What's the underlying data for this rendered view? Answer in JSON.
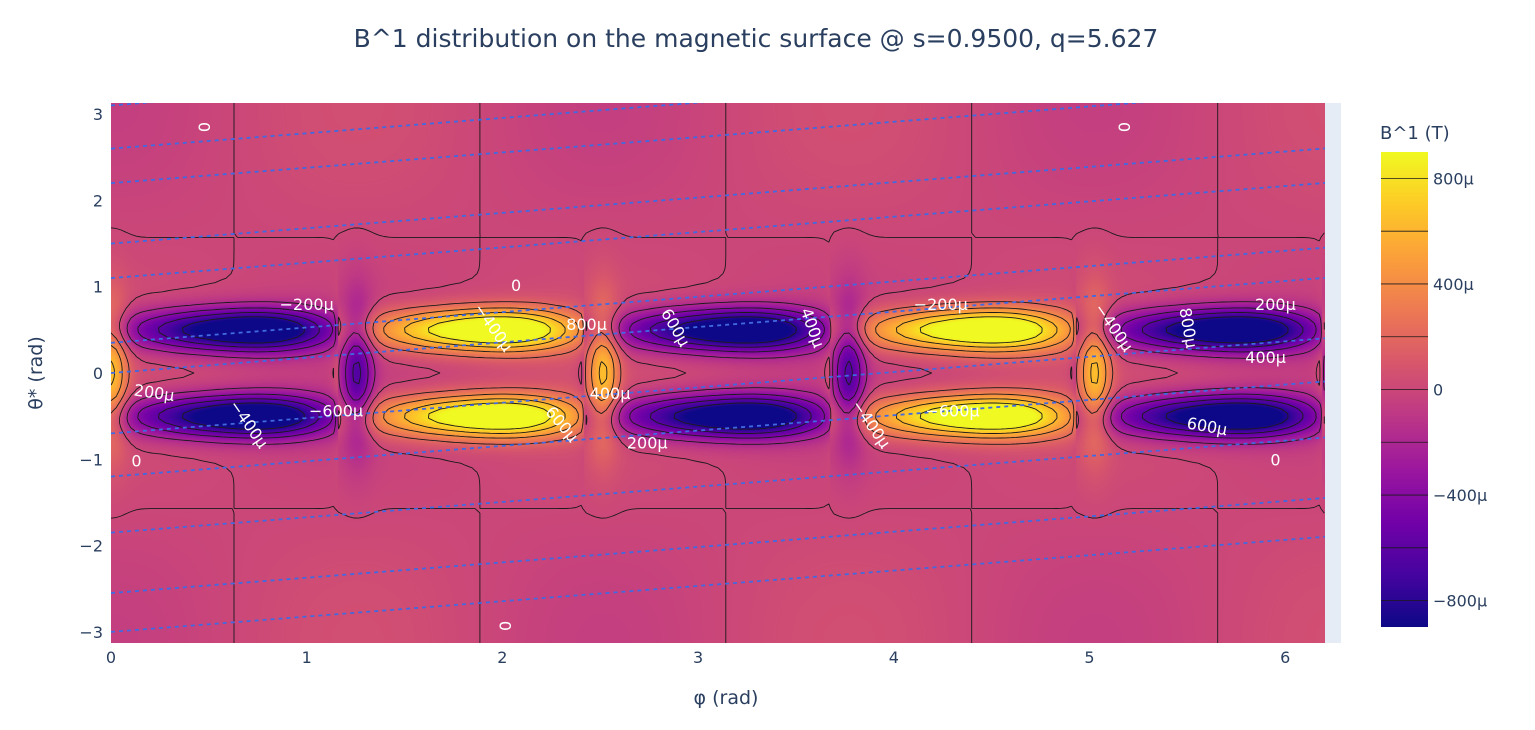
{
  "chart_data": {
    "type": "heatmap",
    "title": "B^1 distribution on the magnetic surface @ s=0.9500, q=5.627",
    "xlabel": "φ (rad)",
    "ylabel": "θ* (rad)",
    "xlim": [
      0,
      6.2
    ],
    "ylim": [
      -3.14,
      3.14
    ],
    "x_ticks": [
      0,
      1,
      2,
      3,
      4,
      5,
      6
    ],
    "x_tick_labels": [
      "0",
      "1",
      "2",
      "3",
      "4",
      "5",
      "6"
    ],
    "y_ticks": [
      -3,
      -2,
      -1,
      0,
      1,
      2,
      3
    ],
    "y_tick_labels": [
      "−3",
      "−2",
      "−1",
      "0",
      "1",
      "2",
      "3"
    ],
    "colorbar": {
      "title": "B^1 (T)",
      "range": [
        -0.0009,
        0.0009
      ],
      "ticks": [
        -0.0008,
        -0.0004,
        0,
        0.0004,
        0.0008
      ],
      "tick_labels": [
        "−800μ",
        "−400μ",
        "0",
        "400μ",
        "800μ"
      ],
      "contour_levels": [
        -0.0008,
        -0.0006,
        -0.0004,
        -0.0002,
        0,
        0.0002,
        0.0004,
        0.0006,
        0.0008
      ],
      "colorscale": [
        "#0d0887",
        "#46039f",
        "#7201a8",
        "#9c179e",
        "#bd3786",
        "#d8576b",
        "#ed7953",
        "#fb9f3a",
        "#fdca26",
        "#f0f921"
      ]
    },
    "field_line_color": "#4169e1",
    "field_line_slope": 0.1777,
    "field_line_offsets": [
      -3.0,
      -2.55,
      -1.85,
      -1.2,
      -0.7,
      0.0,
      0.35,
      1.1,
      1.5,
      2.2,
      2.6,
      3.1
    ],
    "contour_labels": [
      {
        "text": "0",
        "phi": 0.47,
        "theta": 2.85,
        "rot": 90
      },
      {
        "text": "0",
        "phi": 5.17,
        "theta": 2.85,
        "rot": 90
      },
      {
        "text": "0",
        "phi": 2.07,
        "theta": 1.0,
        "rot": 0
      },
      {
        "text": "0",
        "phi": 2.02,
        "theta": -2.93,
        "rot": -90
      },
      {
        "text": "0",
        "phi": 0.13,
        "theta": -1.03,
        "rot": 0
      },
      {
        "text": "0",
        "phi": 5.95,
        "theta": -1.02,
        "rot": 0
      },
      {
        "text": "−200μ",
        "phi": 1.0,
        "theta": 0.78,
        "rot": 0
      },
      {
        "text": "−200μ",
        "phi": 4.24,
        "theta": 0.78,
        "rot": 0
      },
      {
        "text": "200μ",
        "phi": 0.22,
        "theta": -0.24,
        "rot": 8
      },
      {
        "text": "200μ",
        "phi": 5.95,
        "theta": 0.78,
        "rot": 0
      },
      {
        "text": "200μ",
        "phi": 2.74,
        "theta": -0.82,
        "rot": 0
      },
      {
        "text": "−400μ",
        "phi": 1.95,
        "theta": 0.52,
        "rot": 55
      },
      {
        "text": "−400μ",
        "phi": 5.12,
        "theta": 0.52,
        "rot": 55
      },
      {
        "text": "−400μ",
        "phi": 0.7,
        "theta": -0.6,
        "rot": 55
      },
      {
        "text": "−400μ",
        "phi": 3.88,
        "theta": -0.6,
        "rot": 55
      },
      {
        "text": "400μ",
        "phi": 3.58,
        "theta": 0.52,
        "rot": 70
      },
      {
        "text": "400μ",
        "phi": 2.55,
        "theta": -0.25,
        "rot": 0
      },
      {
        "text": "400μ",
        "phi": 5.9,
        "theta": 0.17,
        "rot": 0
      },
      {
        "text": "600μ",
        "phi": 2.88,
        "theta": 0.52,
        "rot": 60
      },
      {
        "text": "600μ",
        "phi": 2.3,
        "theta": -0.6,
        "rot": 50
      },
      {
        "text": "600μ",
        "phi": 5.6,
        "theta": -0.63,
        "rot": 10
      },
      {
        "text": "800μ",
        "phi": 2.43,
        "theta": 0.55,
        "rot": 0
      },
      {
        "text": "800μ",
        "phi": 5.5,
        "theta": 0.52,
        "rot": 80
      },
      {
        "text": "−600μ",
        "phi": 1.15,
        "theta": -0.45,
        "rot": 0
      },
      {
        "text": "−600μ",
        "phi": 4.3,
        "theta": -0.45,
        "rot": 0
      }
    ]
  }
}
